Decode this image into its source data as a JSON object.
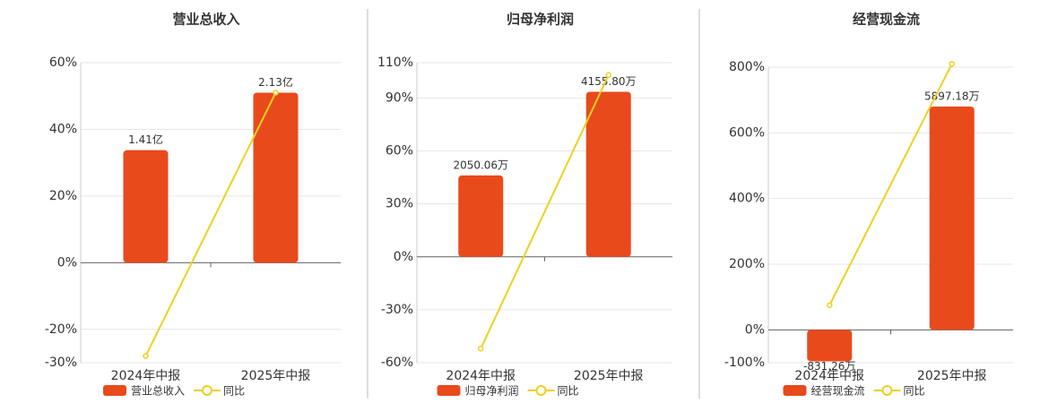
{
  "chart_data": [
    {
      "type": "bar",
      "title": "营业总收入",
      "categories": [
        "2024年中报",
        "2025年中报"
      ],
      "series": [
        {
          "name": "营业总收入",
          "type": "bar",
          "color": "#e84a1c",
          "values": [
            1.41,
            2.13
          ],
          "value_labels": [
            "1.41亿",
            "2.13亿"
          ]
        },
        {
          "name": "同比",
          "type": "line",
          "color": "#f0d020",
          "values": [
            -28,
            51
          ]
        }
      ],
      "ylim": [
        -30,
        60
      ],
      "yticks": [
        {
          "value": -30,
          "label": "-30%"
        },
        {
          "value": -20,
          "label": "-20%"
        },
        {
          "value": 0,
          "label": "0%"
        },
        {
          "value": 20,
          "label": "20%"
        },
        {
          "value": 40,
          "label": "40%"
        },
        {
          "value": 60,
          "label": "60%"
        }
      ],
      "grid": true
    },
    {
      "type": "bar",
      "title": "归母净利润",
      "categories": [
        "2024年中报",
        "2025年中报"
      ],
      "series": [
        {
          "name": "归母净利润",
          "type": "bar",
          "color": "#e84a1c",
          "values": [
            2050.06,
            4155.8
          ],
          "value_labels": [
            "2050.06万",
            "4155.80万"
          ]
        },
        {
          "name": "同比",
          "type": "line",
          "color": "#f0d020",
          "values": [
            -52,
            103
          ]
        }
      ],
      "ylim": [
        -60,
        110
      ],
      "yticks": [
        {
          "value": -60,
          "label": "-60%"
        },
        {
          "value": -30,
          "label": "-30%"
        },
        {
          "value": 0,
          "label": "0%"
        },
        {
          "value": 30,
          "label": "30%"
        },
        {
          "value": 60,
          "label": "60%"
        },
        {
          "value": 90,
          "label": "90%"
        },
        {
          "value": 110,
          "label": "110%"
        }
      ],
      "grid": true
    },
    {
      "type": "bar",
      "title": "经营现金流",
      "categories": [
        "2024年中报",
        "2025年中报"
      ],
      "series": [
        {
          "name": "经营现金流",
          "type": "bar",
          "color": "#e84a1c",
          "values": [
            -831.26,
            5897.18
          ],
          "value_labels": [
            "-831.26万",
            "5897.18万"
          ]
        },
        {
          "name": "同比",
          "type": "line",
          "color": "#f0d020",
          "values": [
            75,
            810
          ]
        }
      ],
      "ylim": [
        -100,
        800
      ],
      "yticks": [
        {
          "value": -100,
          "label": "-100%"
        },
        {
          "value": 0,
          "label": "0%"
        },
        {
          "value": 200,
          "label": "200%"
        },
        {
          "value": 400,
          "label": "400%"
        },
        {
          "value": 600,
          "label": "600%"
        },
        {
          "value": 800,
          "label": "800%"
        }
      ],
      "grid": true
    }
  ]
}
